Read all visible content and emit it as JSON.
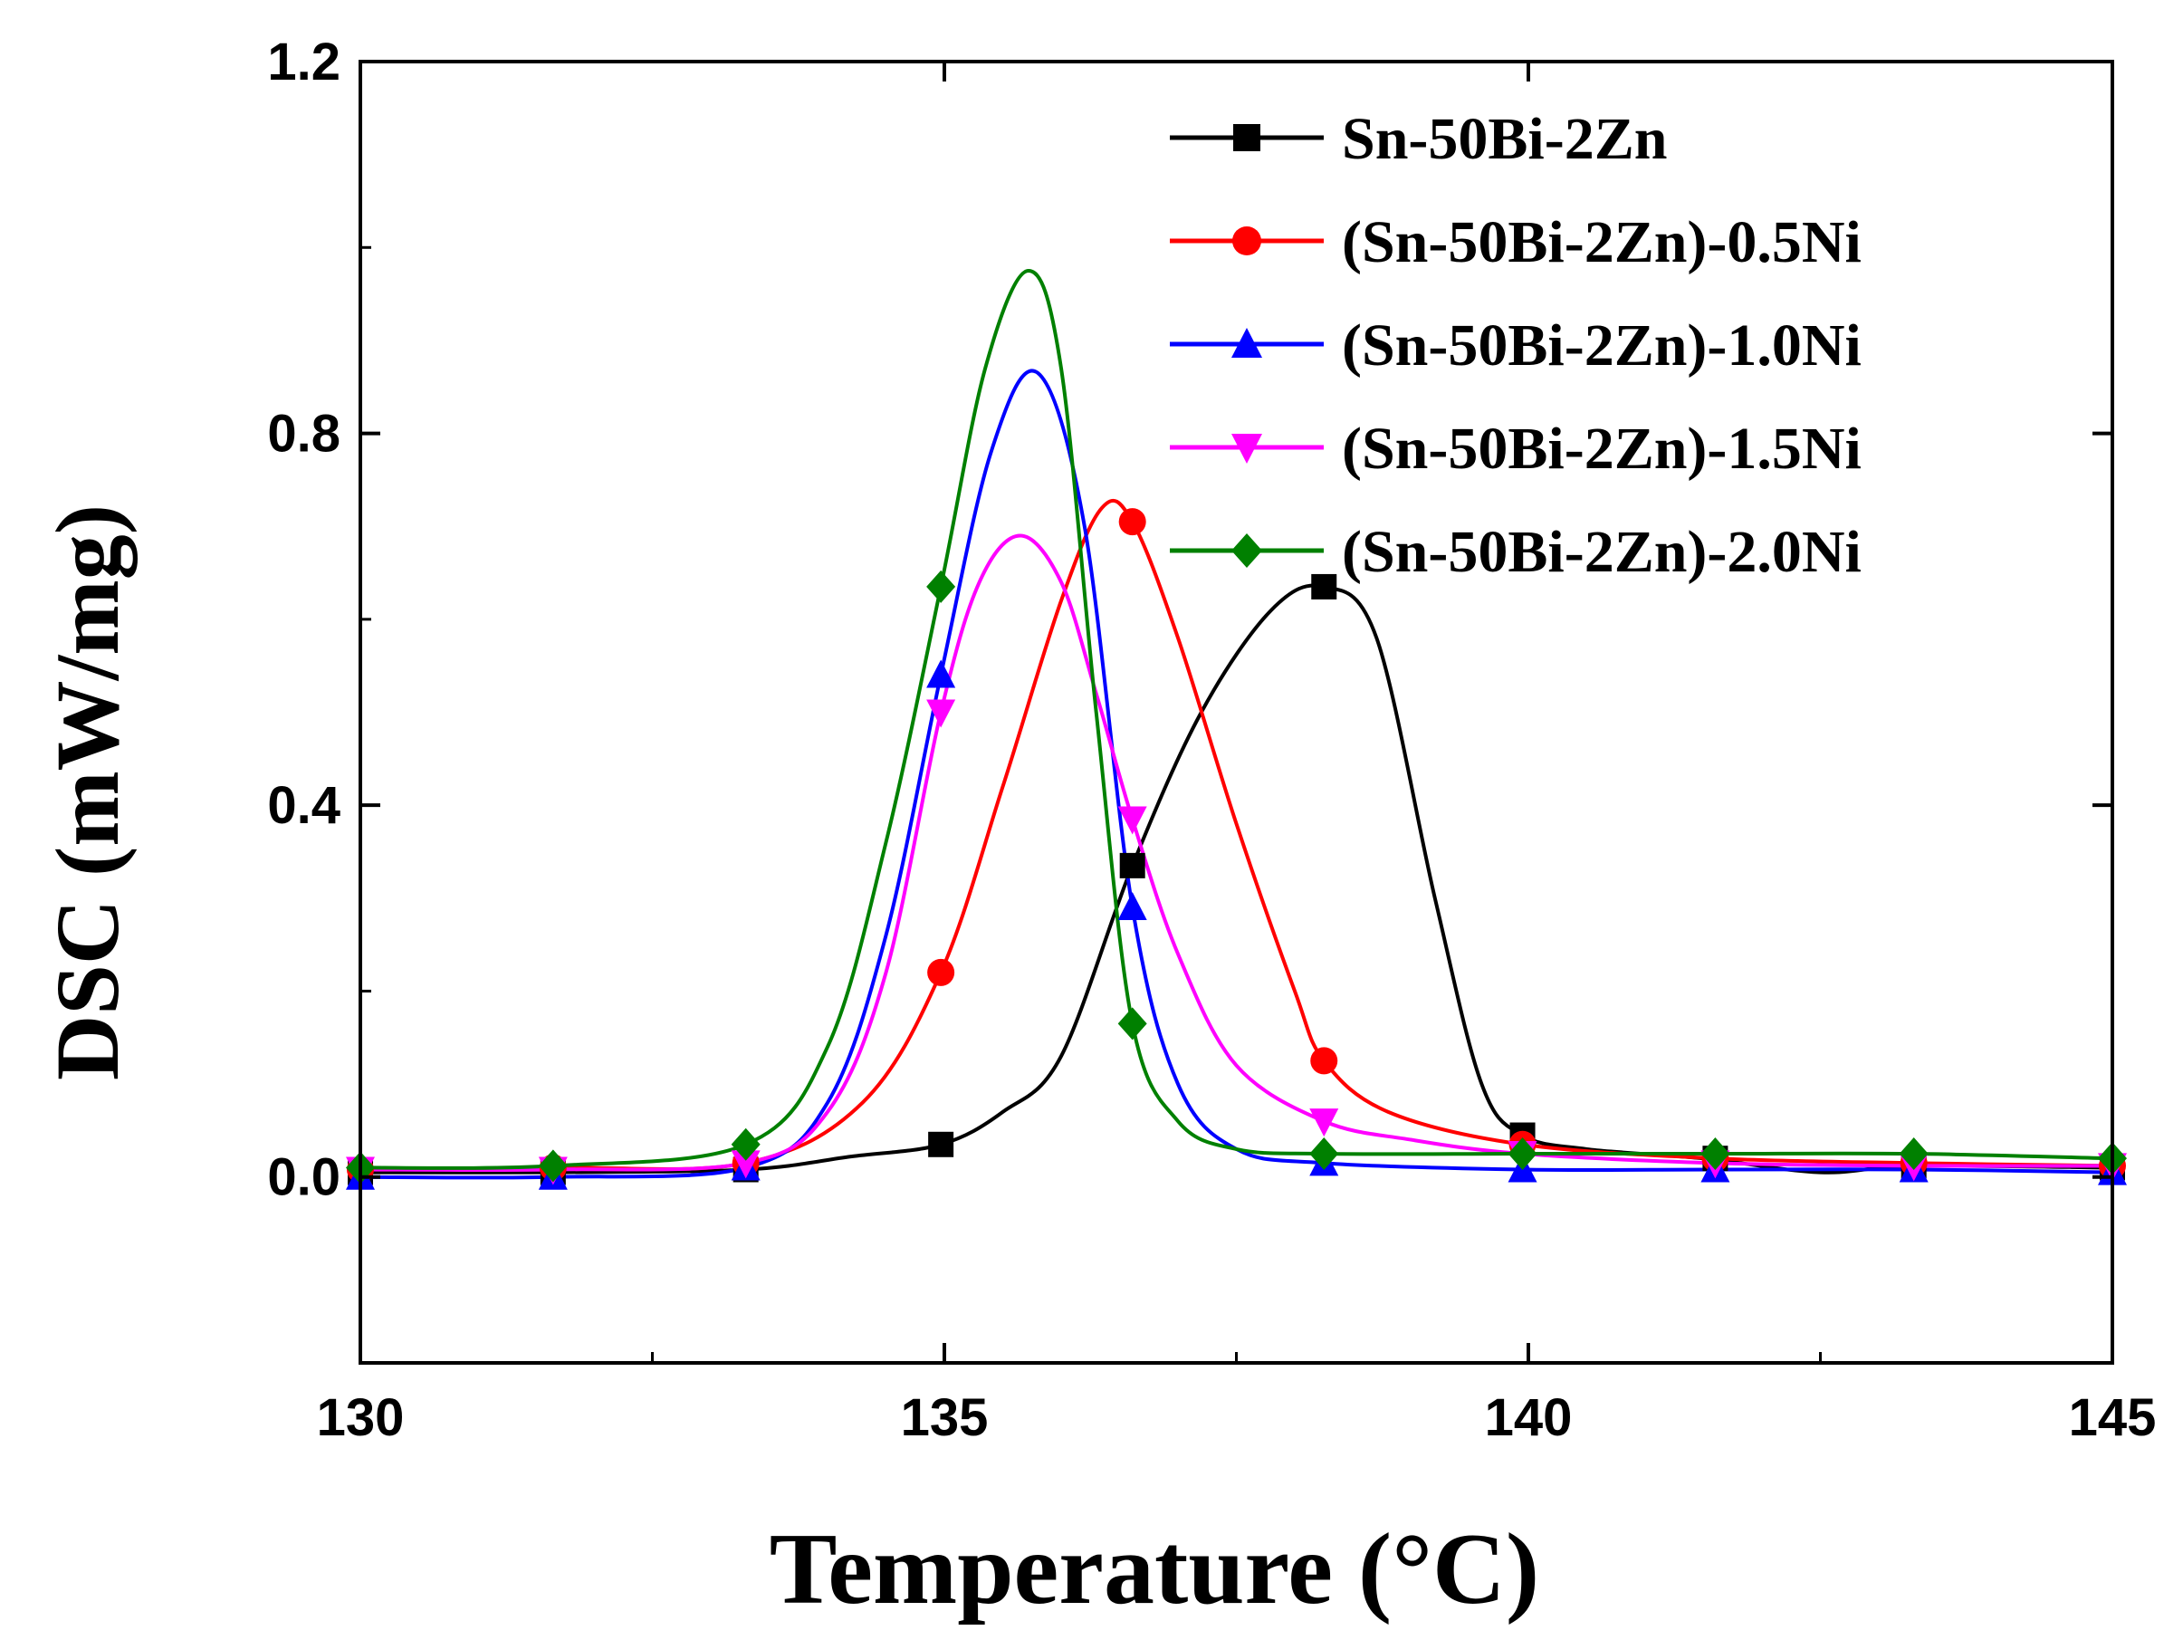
{
  "chart_data": {
    "type": "line",
    "title": "",
    "xlabel": "Temperature (°C)",
    "ylabel": "DSC (mW/mg)",
    "xlim": [
      130,
      145
    ],
    "ylim": [
      -0.2,
      1.2
    ],
    "x_ticks": [
      130,
      135,
      140,
      145
    ],
    "x_tick_labels": [
      "130",
      "135",
      "140",
      "145"
    ],
    "y_ticks": [
      0.0,
      0.4,
      0.8,
      1.2
    ],
    "y_tick_labels": [
      "0.0",
      "0.4",
      "0.8",
      "1.2"
    ],
    "grid": false,
    "legend_position": "top-right",
    "series": [
      {
        "name": "Sn-50Bi-2Zn",
        "color": "#000000",
        "marker": "square",
        "x": [
          130,
          131.65,
          133.3,
          134.2,
          134.97,
          135.5,
          136.0,
          136.61,
          137.2,
          137.8,
          138.25,
          138.7,
          139.2,
          139.6,
          139.95,
          140.5,
          141.5,
          142.5,
          143.3,
          145
        ],
        "y": [
          0.005,
          0.005,
          0.008,
          0.022,
          0.035,
          0.07,
          0.13,
          0.335,
          0.5,
          0.61,
          0.635,
          0.58,
          0.3,
          0.1,
          0.045,
          0.03,
          0.02,
          0.005,
          0.012,
          0.01
        ],
        "marker_x": [
          130,
          131.65,
          133.3,
          134.97,
          136.61,
          138.25,
          139.95,
          141.6,
          143.3,
          145
        ],
        "marker_y": [
          0.005,
          0.005,
          0.008,
          0.035,
          0.335,
          0.635,
          0.045,
          0.02,
          0.012,
          0.01
        ]
      },
      {
        "name": "(Sn-50Bi-2Zn)-0.5Ni",
        "color": "#ff0000",
        "marker": "circle",
        "x": [
          130,
          131.65,
          133.3,
          134.3,
          134.97,
          135.5,
          136.0,
          136.35,
          136.61,
          137.0,
          137.5,
          138.0,
          138.25,
          138.8,
          139.95,
          141.6,
          143.3,
          145
        ],
        "y": [
          0.008,
          0.01,
          0.015,
          0.08,
          0.22,
          0.42,
          0.62,
          0.72,
          0.705,
          0.58,
          0.38,
          0.2,
          0.125,
          0.07,
          0.035,
          0.02,
          0.015,
          0.012
        ],
        "marker_x": [
          130,
          131.65,
          133.3,
          134.97,
          136.61,
          138.25,
          139.95,
          141.6,
          143.3,
          145
        ],
        "marker_y": [
          0.008,
          0.01,
          0.015,
          0.22,
          0.705,
          0.125,
          0.035,
          0.02,
          0.015,
          0.012
        ]
      },
      {
        "name": "(Sn-50Bi-2Zn)-1.0Ni",
        "color": "#0000ff",
        "marker": "triangle-up",
        "x": [
          130,
          131.65,
          133.3,
          134.0,
          134.5,
          134.97,
          135.4,
          135.8,
          136.2,
          136.61,
          137.0,
          137.5,
          138.25,
          139.95,
          141.6,
          143.3,
          145
        ],
        "y": [
          0.0,
          0.0,
          0.01,
          0.08,
          0.26,
          0.54,
          0.78,
          0.865,
          0.7,
          0.29,
          0.1,
          0.03,
          0.015,
          0.008,
          0.008,
          0.008,
          0.005
        ],
        "marker_x": [
          130,
          131.65,
          133.3,
          134.97,
          136.61,
          138.25,
          139.95,
          141.6,
          143.3,
          145
        ],
        "marker_y": [
          0.0,
          0.0,
          0.01,
          0.54,
          0.29,
          0.015,
          0.008,
          0.008,
          0.008,
          0.005
        ]
      },
      {
        "name": "(Sn-50Bi-2Zn)-1.5Ni",
        "color": "#ff00ff",
        "marker": "triangle-down",
        "x": [
          130,
          131.65,
          133.3,
          134.0,
          134.5,
          134.97,
          135.3,
          135.65,
          136.0,
          136.3,
          136.61,
          137.0,
          137.5,
          138.25,
          139.0,
          139.95,
          141.6,
          143.3,
          145
        ],
        "y": [
          0.008,
          0.008,
          0.015,
          0.07,
          0.22,
          0.5,
          0.64,
          0.69,
          0.64,
          0.52,
          0.385,
          0.24,
          0.12,
          0.06,
          0.04,
          0.025,
          0.015,
          0.012,
          0.012
        ],
        "marker_x": [
          130,
          131.65,
          133.3,
          134.97,
          136.61,
          138.25,
          139.95,
          141.6,
          143.3,
          145
        ],
        "marker_y": [
          0.008,
          0.008,
          0.015,
          0.5,
          0.385,
          0.06,
          0.025,
          0.015,
          0.012,
          0.012
        ]
      },
      {
        "name": "(Sn-50Bi-2Zn)-2.0Ni",
        "color": "#008000",
        "marker": "diamond",
        "x": [
          130,
          131.65,
          133.3,
          134.0,
          134.5,
          134.97,
          135.35,
          135.72,
          136.0,
          136.3,
          136.61,
          137.0,
          137.5,
          138.25,
          139.95,
          141.6,
          143.3,
          145
        ],
        "y": [
          0.01,
          0.012,
          0.035,
          0.14,
          0.36,
          0.635,
          0.87,
          0.975,
          0.87,
          0.5,
          0.165,
          0.06,
          0.03,
          0.025,
          0.025,
          0.025,
          0.025,
          0.02
        ],
        "marker_x": [
          130,
          131.65,
          133.3,
          134.97,
          136.61,
          138.25,
          139.95,
          141.6,
          143.3,
          145
        ],
        "marker_y": [
          0.01,
          0.012,
          0.035,
          0.635,
          0.165,
          0.025,
          0.025,
          0.025,
          0.025,
          0.02
        ]
      }
    ]
  }
}
